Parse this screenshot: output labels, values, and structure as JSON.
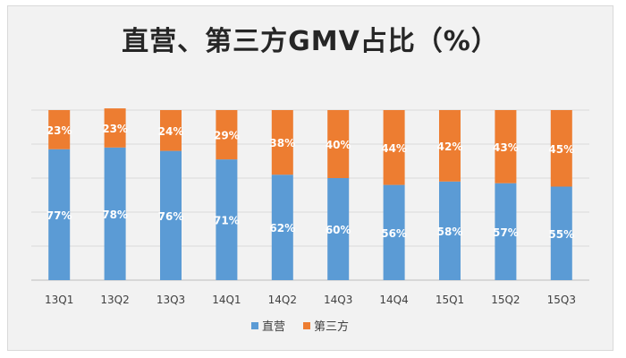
{
  "chart_data": {
    "type": "bar",
    "stacked": true,
    "title": "直营、第三方GMV占比（%）",
    "categories": [
      "13Q1",
      "13Q2",
      "13Q3",
      "14Q1",
      "14Q2",
      "14Q3",
      "14Q4",
      "15Q1",
      "15Q2",
      "15Q3"
    ],
    "series": [
      {
        "name": "直营",
        "color": "#5b9bd5",
        "values": [
          77,
          78,
          76,
          71,
          62,
          60,
          56,
          58,
          57,
          55
        ],
        "labels": [
          "77%",
          "78%",
          "76%",
          "71%",
          "62%",
          "60%",
          "56%",
          "58%",
          "57%",
          "55%"
        ]
      },
      {
        "name": "第三方",
        "color": "#ed7d31",
        "values": [
          23,
          23,
          24,
          29,
          38,
          40,
          44,
          42,
          43,
          45
        ],
        "labels": [
          "23%",
          "23%",
          "24%",
          "29%",
          "38%",
          "40%",
          "44%",
          "42%",
          "43%",
          "45%"
        ]
      }
    ],
    "ylim": [
      0,
      100
    ],
    "xlabel": "",
    "ylabel": "",
    "grid": true,
    "legend": "bottom"
  }
}
